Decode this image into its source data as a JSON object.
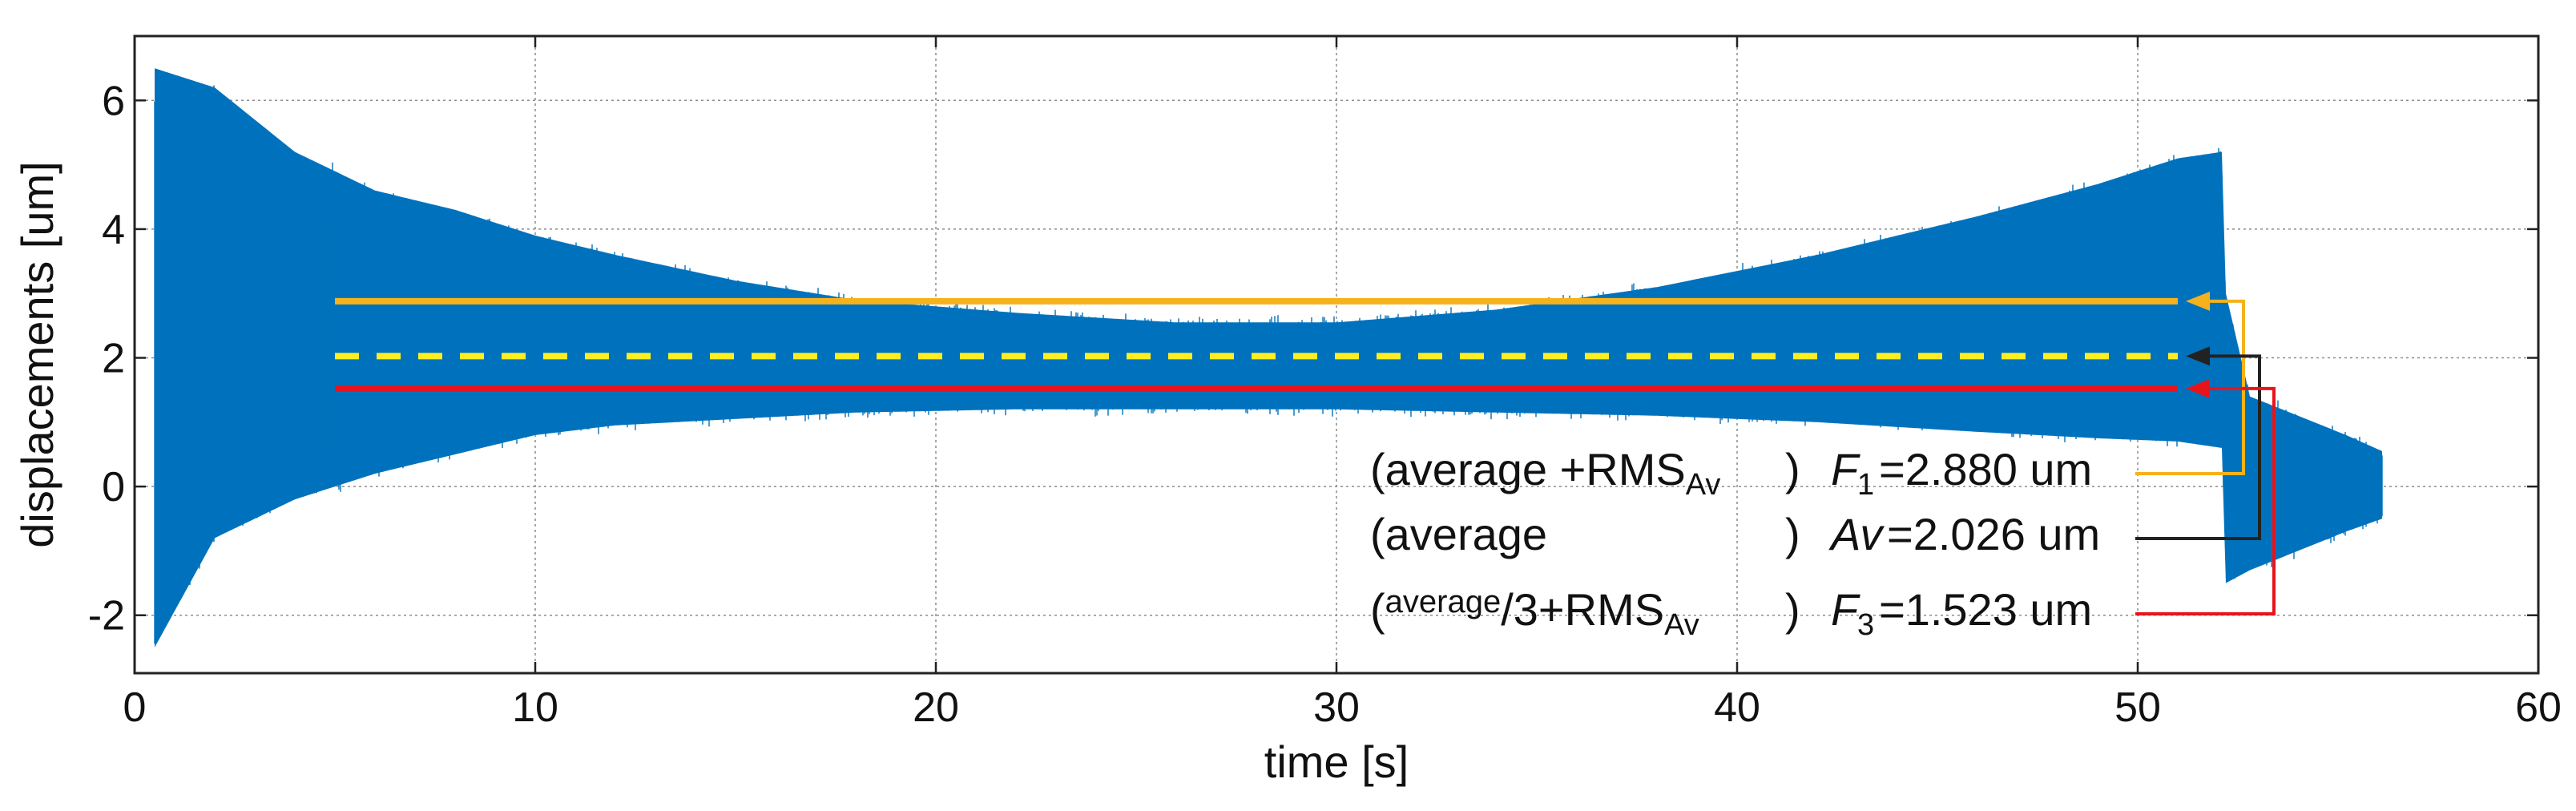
{
  "chart_data": {
    "type": "line",
    "xlabel": "time [s]",
    "ylabel": "displacements [um]",
    "xlim": [
      0,
      60
    ],
    "ylim": [
      -2.9,
      7.0
    ],
    "xticks": [
      0,
      10,
      20,
      30,
      40,
      50,
      60
    ],
    "yticks": [
      -2,
      0,
      2,
      4,
      6
    ],
    "grid": true,
    "signal": {
      "name": "displacement",
      "color": "#0072bd",
      "t_start": 0.5,
      "t_end": 56.1,
      "envelope": [
        {
          "t": 0.5,
          "lo": -2.5,
          "hi": 6.5
        },
        {
          "t": 2,
          "lo": -0.8,
          "hi": 6.2
        },
        {
          "t": 4,
          "lo": -0.2,
          "hi": 5.2
        },
        {
          "t": 6,
          "lo": 0.2,
          "hi": 4.6
        },
        {
          "t": 8,
          "lo": 0.5,
          "hi": 4.3
        },
        {
          "t": 10,
          "lo": 0.8,
          "hi": 3.9
        },
        {
          "t": 12,
          "lo": 0.95,
          "hi": 3.6
        },
        {
          "t": 15,
          "lo": 1.05,
          "hi": 3.2
        },
        {
          "t": 18,
          "lo": 1.15,
          "hi": 2.9
        },
        {
          "t": 22,
          "lo": 1.2,
          "hi": 2.7
        },
        {
          "t": 26,
          "lo": 1.2,
          "hi": 2.55
        },
        {
          "t": 30,
          "lo": 1.2,
          "hi": 2.55
        },
        {
          "t": 34,
          "lo": 1.15,
          "hi": 2.75
        },
        {
          "t": 38,
          "lo": 1.1,
          "hi": 3.1
        },
        {
          "t": 42,
          "lo": 1.0,
          "hi": 3.6
        },
        {
          "t": 46,
          "lo": 0.85,
          "hi": 4.2
        },
        {
          "t": 49,
          "lo": 0.75,
          "hi": 4.7
        },
        {
          "t": 51,
          "lo": 0.7,
          "hi": 5.1
        },
        {
          "t": 52.1,
          "lo": 0.6,
          "hi": 5.2
        },
        {
          "t": 52.2,
          "lo": -1.5,
          "hi": 3.0
        },
        {
          "t": 52.8,
          "lo": -1.3,
          "hi": 1.4
        },
        {
          "t": 54,
          "lo": -1.0,
          "hi": 1.1
        },
        {
          "t": 55.2,
          "lo": -0.7,
          "hi": 0.8
        },
        {
          "t": 56.1,
          "lo": -0.5,
          "hi": 0.55
        }
      ]
    },
    "reference_lines": [
      {
        "id": "F1",
        "value": 2.88,
        "style": "solid",
        "color": "#f5b21c",
        "x_start": 5,
        "x_end": 51,
        "prefix": "(average",
        "mid": "  +RMS",
        "mid_sub": "Av",
        "suffix": ")",
        "symbol": "F",
        "symbol_sub": "1",
        "value_text": " =2.880 um"
      },
      {
        "id": "Av",
        "value": 2.026,
        "style": "dashed",
        "color": "#ffee22",
        "x_start": 5,
        "x_end": 51,
        "prefix": "(average",
        "mid": "",
        "mid_sub": "",
        "suffix": ")",
        "symbol": "Av",
        "symbol_sub": "",
        "value_text": "=2.026 um"
      },
      {
        "id": "F3",
        "value": 1.523,
        "style": "solid",
        "color": "#e8141b",
        "x_start": 5,
        "x_end": 51,
        "prefix": "(",
        "mid": "/3+RMS",
        "mid_sub": "Av",
        "suffix": ")",
        "symbol": "F",
        "symbol_sub": "3",
        "value_text": " =1.523 um"
      }
    ],
    "connector_colors": [
      "#f5b21c",
      "#222222",
      "#e8141b"
    ]
  },
  "labels": {
    "average_sup": "average"
  }
}
